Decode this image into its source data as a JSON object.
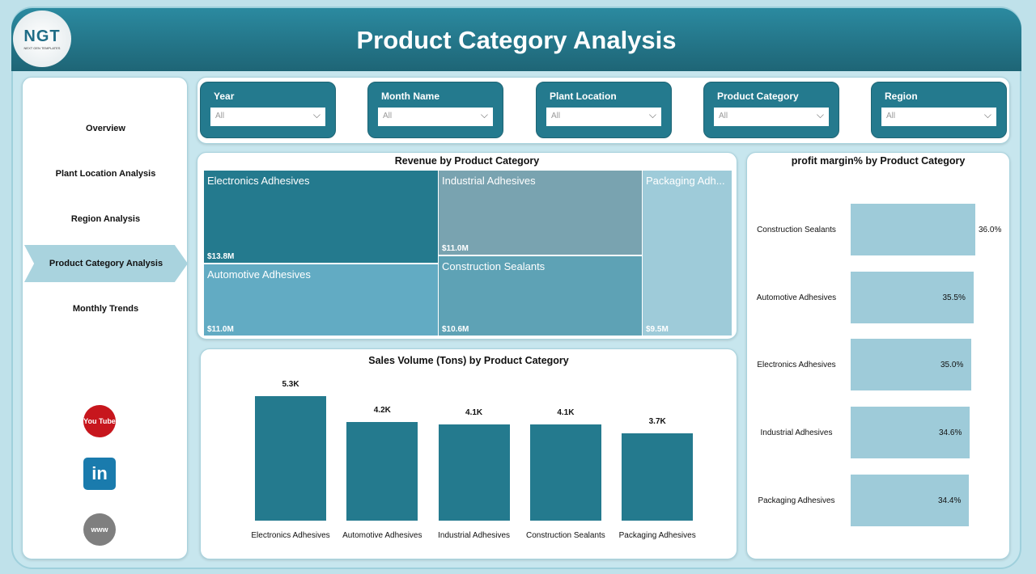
{
  "header": {
    "title": "Product Category Analysis",
    "logo_text": "NGT",
    "logo_sub": "NEXT GEN TEMPLATES"
  },
  "sidebar": {
    "items": [
      {
        "label": "Overview"
      },
      {
        "label": "Plant Location Analysis"
      },
      {
        "label": "Region Analysis"
      },
      {
        "label": "Product Category Analysis",
        "active": true
      },
      {
        "label": "Monthly Trends"
      }
    ],
    "social": [
      {
        "icon": "youtube-icon",
        "label": "You Tube"
      },
      {
        "icon": "linkedin-icon",
        "label": "in"
      },
      {
        "icon": "globe-www-icon",
        "label": "www"
      }
    ]
  },
  "filters": [
    {
      "label": "Year",
      "value": "All"
    },
    {
      "label": "Month Name",
      "value": "All"
    },
    {
      "label": "Plant Location",
      "value": "All"
    },
    {
      "label": "Product Category",
      "value": "All"
    },
    {
      "label": "Region",
      "value": "All"
    }
  ],
  "colors": {
    "header": "#247a8e",
    "accent": "#247a8e",
    "light": "#9ecbd9"
  },
  "chart_data": [
    {
      "type": "treemap",
      "title": "Revenue by Product Category",
      "items": [
        {
          "name": "Electronics Adhesives",
          "display": "Electronics Adhesives",
          "value": "$13.8M",
          "color": "#247a8e"
        },
        {
          "name": "Automotive Adhesives",
          "display": "Automotive Adhesives",
          "value": "$11.0M",
          "color": "#62abc3"
        },
        {
          "name": "Industrial Adhesives",
          "display": "Industrial Adhesives",
          "value": "$11.0M",
          "color": "#79a3b0"
        },
        {
          "name": "Construction Sealants",
          "display": "Construction Sealants",
          "value": "$10.6M",
          "color": "#5ea2b5"
        },
        {
          "name": "Packaging Adhesives",
          "display": "Packaging Adh...",
          "value": "$9.5M",
          "color": "#9ecbd9"
        }
      ]
    },
    {
      "type": "bar",
      "title": "Sales Volume (Tons) by Product Category",
      "categories": [
        "Electronics Adhesives",
        "Automotive Adhesives",
        "Industrial Adhesives",
        "Construction Sealants",
        "Packaging Adhesives"
      ],
      "values": [
        5.3,
        4.2,
        4.1,
        4.1,
        3.7
      ],
      "labels": [
        "5.3K",
        "4.2K",
        "4.1K",
        "4.1K",
        "3.7K"
      ],
      "unit": "K"
    },
    {
      "type": "bar",
      "orientation": "horizontal",
      "title": "profit margin% by Product Category",
      "categories": [
        "Construction Sealants",
        "Automotive Adhesives",
        "Electronics Adhesives",
        "Industrial Adhesives",
        "Packaging Adhesives"
      ],
      "values": [
        36.0,
        35.5,
        35.0,
        34.6,
        34.4
      ],
      "labels": [
        "36.0%",
        "35.5%",
        "35.0%",
        "34.6%",
        "34.4%"
      ]
    }
  ]
}
